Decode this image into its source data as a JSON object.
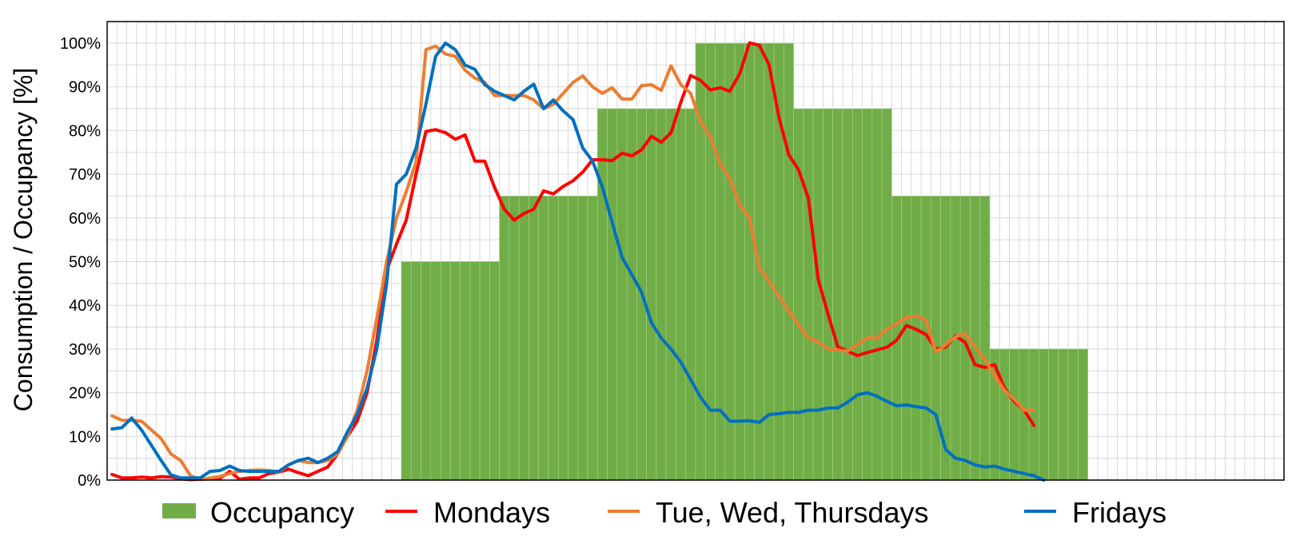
{
  "chart_data": {
    "type": "bar+line",
    "ylabel": "Consumption / Occupancy [%]",
    "xlabel": "",
    "ylim": [
      0,
      100
    ],
    "y_tick_labels": [
      "0%",
      "10%",
      "20%",
      "30%",
      "40%",
      "50%",
      "60%",
      "70%",
      "80%",
      "90%",
      "100%"
    ],
    "grid": true,
    "legend_position": "bottom",
    "x_points": 120,
    "bar_series": {
      "name": "Occupancy",
      "color": "#70ad47",
      "blocks": [
        {
          "start": 30,
          "end": 40,
          "value": 50
        },
        {
          "start": 40,
          "end": 50,
          "value": 65
        },
        {
          "start": 50,
          "end": 60,
          "value": 85
        },
        {
          "start": 60,
          "end": 70,
          "value": 100
        },
        {
          "start": 70,
          "end": 80,
          "value": 85
        },
        {
          "start": 80,
          "end": 90,
          "value": 65
        },
        {
          "start": 90,
          "end": 100,
          "value": 30
        }
      ]
    },
    "series": [
      {
        "name": "Mondays",
        "color": "#ff0000",
        "values": [
          1.3,
          0.5,
          0.5,
          0.7,
          0.5,
          0.8,
          0.7,
          0.3,
          0.1,
          0.2,
          0.3,
          0.4,
          2,
          0.2,
          0.5,
          0.5,
          1.5,
          1.8,
          2.5,
          1.7,
          1,
          2,
          3,
          6,
          10,
          13.5,
          20,
          32,
          48,
          54,
          59.5,
          70,
          79.8,
          80.2,
          79.5,
          78,
          79,
          73,
          73,
          67,
          62,
          59.5,
          61,
          62,
          66.2,
          65.5,
          67.2,
          68.5,
          70.5,
          73.3,
          73.3,
          73.1,
          74.8,
          74.2,
          75.6,
          78.7,
          77.3,
          79.5,
          86.5,
          92.6,
          91.5,
          89.3,
          89.8,
          89,
          93,
          100.1,
          99.5,
          95,
          83,
          74.5,
          71,
          64.5,
          46,
          38,
          30.5,
          29.5,
          28.5,
          29.2,
          29.8,
          30.4,
          32,
          35.4,
          34.5,
          33.3,
          30,
          30.5,
          33,
          31.5,
          26.4,
          25.8,
          26.4,
          21,
          18,
          16,
          12.5
        ]
      },
      {
        "name": "Tue, Wed, Thursdays",
        "color": "#ed7d31",
        "values": [
          14.7,
          13.7,
          13.7,
          13.5,
          11.5,
          9.5,
          6,
          4.5,
          1,
          0.1,
          0.5,
          0.8,
          1.5,
          2,
          2.2,
          2.3,
          2.2,
          1.8,
          3.5,
          4.5,
          4,
          4,
          4.5,
          6,
          10,
          16,
          25,
          37,
          50,
          60,
          66,
          72.8,
          98.5,
          99.3,
          97.5,
          97,
          93.8,
          92,
          91,
          88,
          88,
          88,
          88,
          87,
          85,
          86,
          88.5,
          91,
          92.5,
          90,
          88.5,
          89.8,
          87.2,
          87.2,
          90.3,
          90.5,
          89.2,
          94.8,
          90.5,
          88.5,
          82,
          78.5,
          72.5,
          69,
          63,
          60,
          48.5,
          45.5,
          42,
          38.7,
          35.5,
          32.5,
          31.6,
          30,
          29.8,
          29.5,
          31,
          32.5,
          32.5,
          34.5,
          35.8,
          37.2,
          37.6,
          36.6,
          29.3,
          31,
          32.8,
          33.5,
          30.5,
          27.5,
          24,
          20.5,
          18.5,
          16,
          16
        ]
      },
      {
        "name": "Fridays",
        "color": "#0070c0",
        "values": [
          11.7,
          12,
          14.2,
          11.5,
          8,
          4.5,
          1.2,
          0.5,
          0.5,
          0.5,
          2,
          2.2,
          3.2,
          2.2,
          2,
          2,
          2,
          2,
          3.5,
          4.5,
          5,
          4,
          5,
          6.5,
          11,
          15,
          21,
          30,
          45,
          67.7,
          70,
          76,
          86,
          97,
          100,
          98.5,
          95,
          94,
          90.5,
          89,
          88,
          87,
          89,
          90.6,
          85,
          87,
          84.5,
          82.5,
          76,
          73,
          67,
          59,
          51,
          47,
          43,
          36,
          32.5,
          30,
          27,
          23,
          19,
          16,
          16,
          13.5,
          13.5,
          13.6,
          13.2,
          15,
          15.2,
          15.5,
          15.5,
          16,
          16,
          16.5,
          16.5,
          17.8,
          19.5,
          20,
          19.2,
          18,
          17,
          17.2,
          16.8,
          16.5,
          15,
          7,
          5,
          4.5,
          3.5,
          3,
          3.2,
          2.5,
          2,
          1.5,
          1,
          0
        ]
      }
    ]
  },
  "legend": {
    "items": [
      {
        "label": "Occupancy",
        "color": "#70ad47",
        "kind": "box"
      },
      {
        "label": "Mondays",
        "color": "#ff0000",
        "kind": "line"
      },
      {
        "label": "Tue, Wed, Thursdays",
        "color": "#ed7d31",
        "kind": "line"
      },
      {
        "label": "Fridays",
        "color": "#0070c0",
        "kind": "line"
      }
    ]
  },
  "colors": {
    "grid": "#d9d9d9",
    "axis": "#000000",
    "bar_separator": "#a9d18e"
  }
}
